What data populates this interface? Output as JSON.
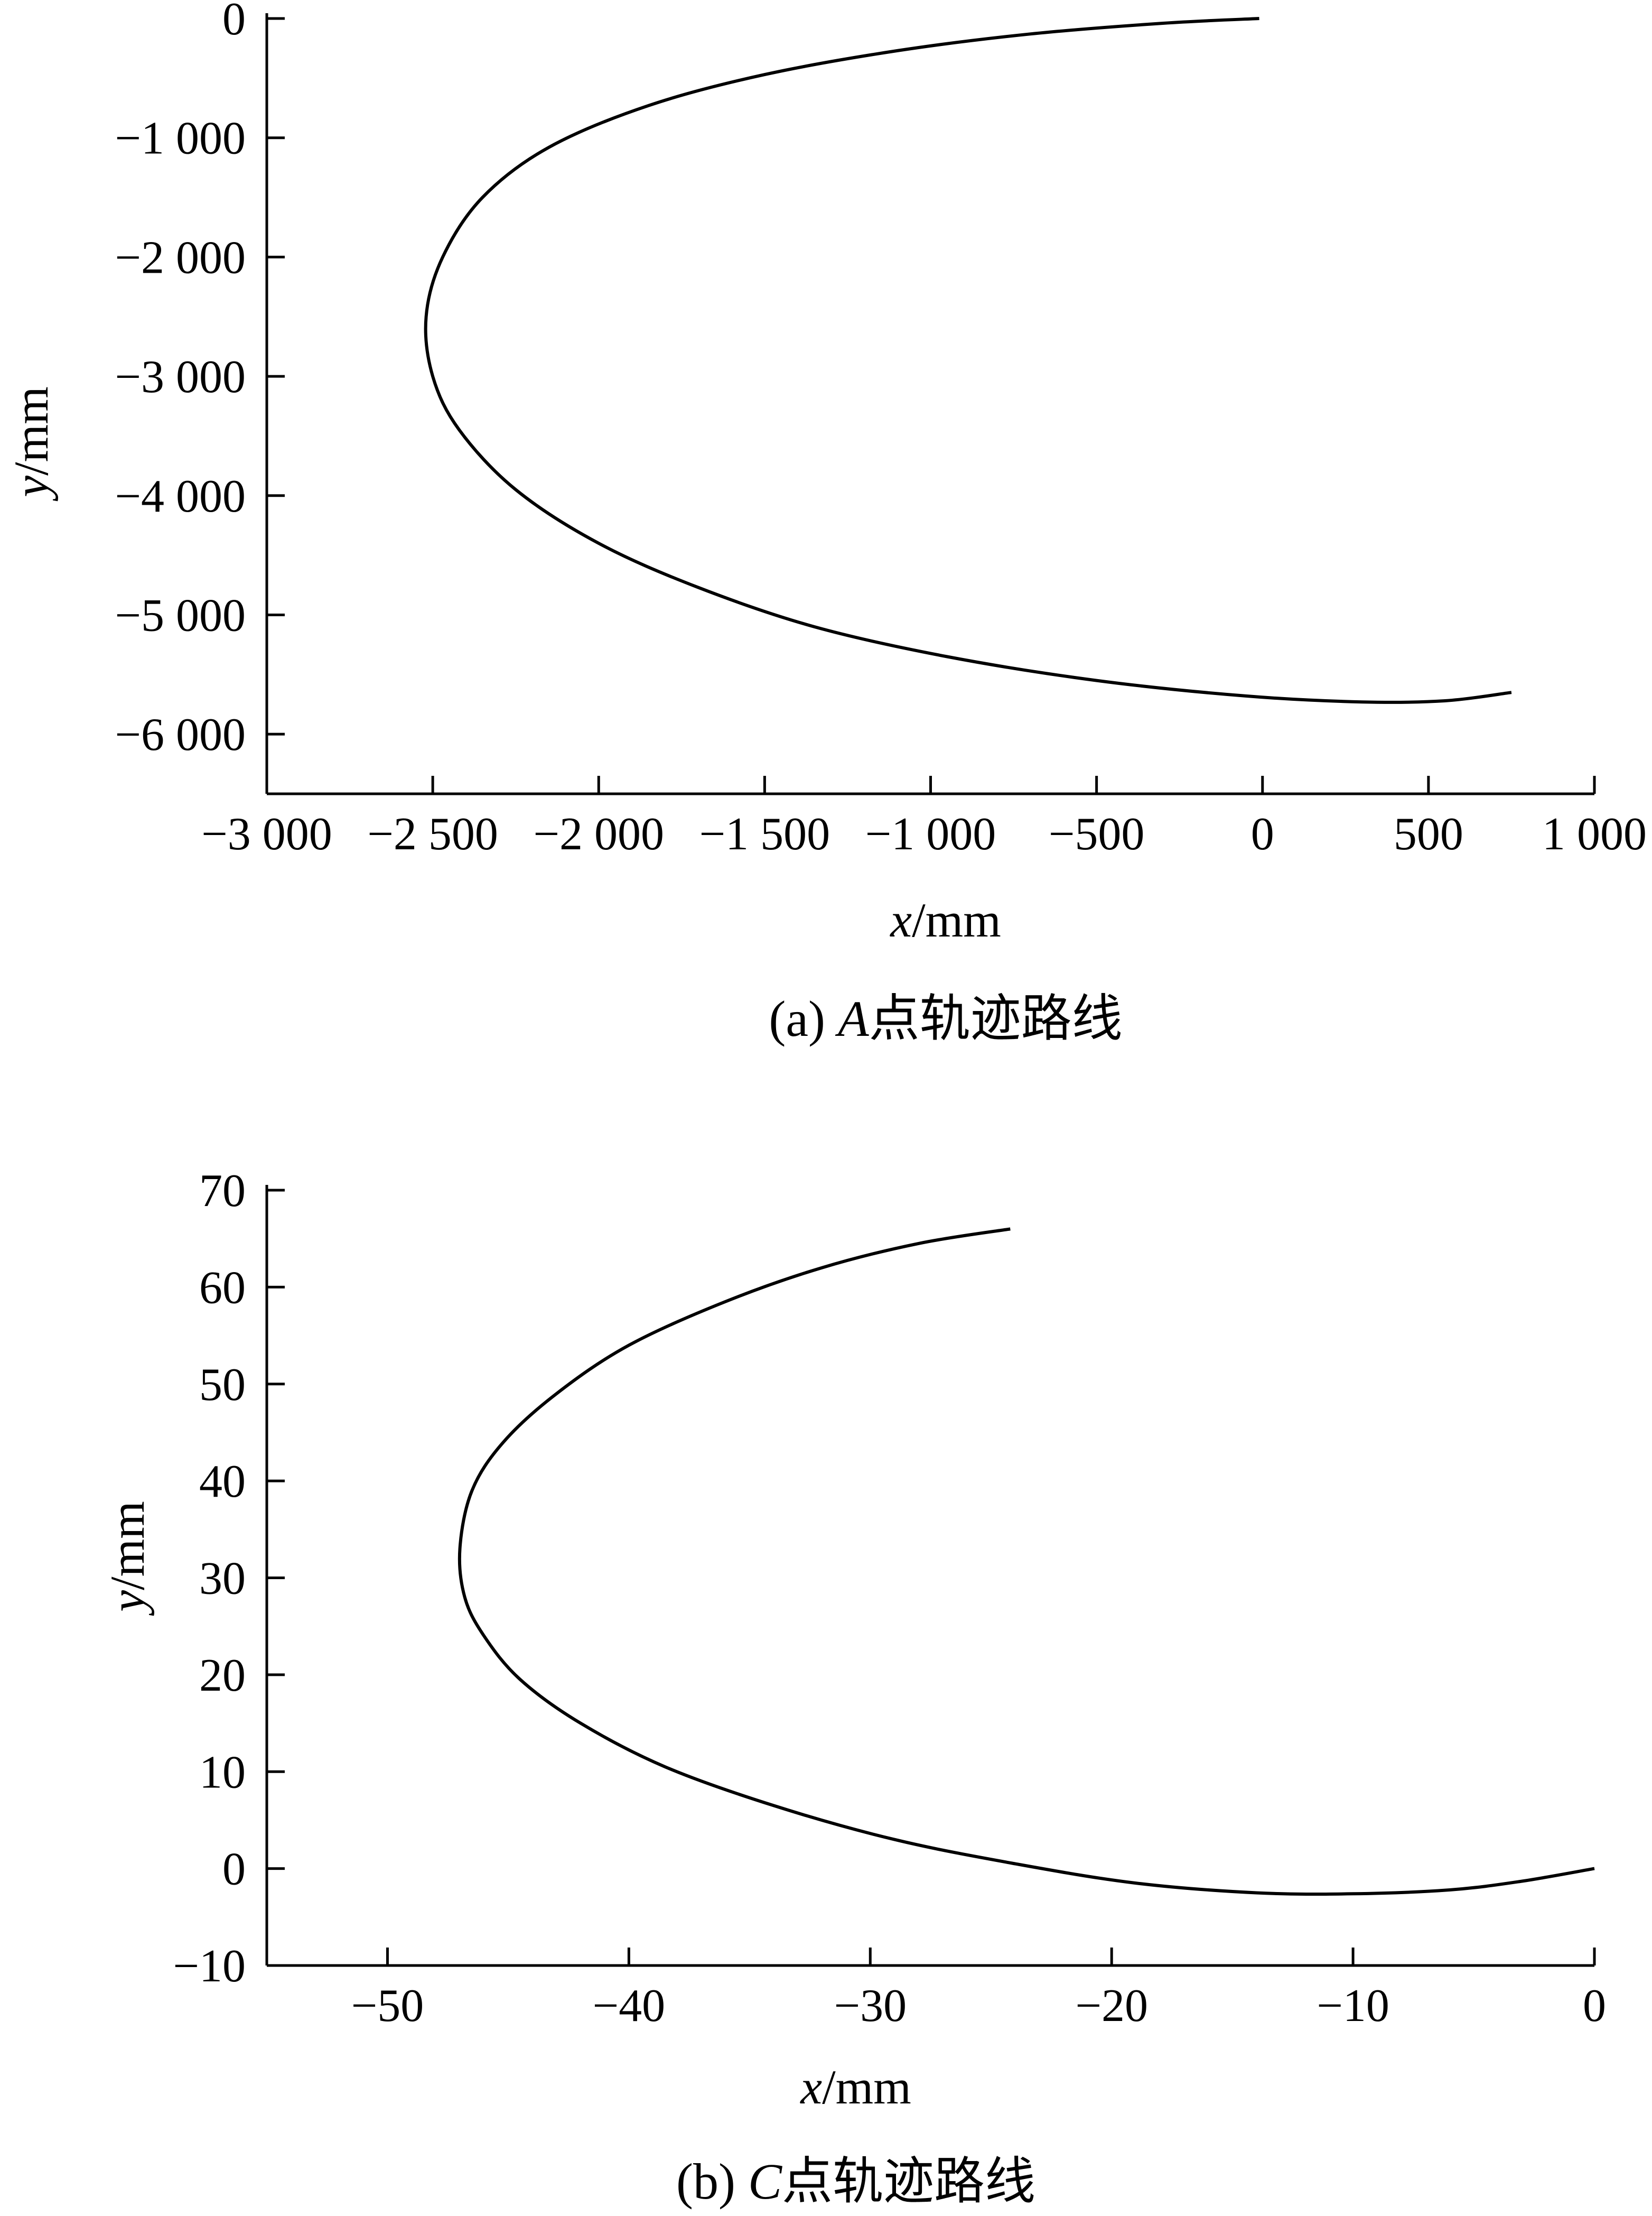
{
  "chart_data": [
    {
      "type": "line",
      "xlabel_var": "x",
      "xlabel_unit": "/mm",
      "ylabel_var": "y",
      "ylabel_unit": "/mm",
      "caption_prefix": "(a) ",
      "caption_var": "A",
      "caption_text": "点轨迹路线",
      "xlim": [
        -3000,
        1000
      ],
      "ylim": [
        -6500,
        0
      ],
      "grid": false,
      "xticks": [
        -3000,
        -2500,
        -2000,
        -1500,
        -1000,
        -500,
        0,
        500,
        1000
      ],
      "xtick_labels": [
        "−3 000",
        "−2 500",
        "−2 000",
        "−1 500",
        "−1 000",
        "−500",
        "0",
        "500",
        "1 000"
      ],
      "yticks": [
        0,
        -1000,
        -2000,
        -3000,
        -4000,
        -5000,
        -6000
      ],
      "ytick_labels": [
        "0",
        "−1 000",
        "−2 000",
        "−3 000",
        "−4 000",
        "−5 000",
        "−6 000"
      ],
      "series": [
        {
          "x": [
            -10,
            -300,
            -700,
            -1100,
            -1500,
            -1850,
            -2150,
            -2350,
            -2470,
            -2520,
            -2500,
            -2420,
            -2250,
            -2000,
            -1700,
            -1350,
            -950,
            -500,
            -50,
            300,
            550,
            750
          ],
          "y": [
            0,
            -40,
            -130,
            -270,
            -470,
            -730,
            -1080,
            -1500,
            -2000,
            -2500,
            -3000,
            -3450,
            -3950,
            -4400,
            -4770,
            -5100,
            -5350,
            -5550,
            -5680,
            -5730,
            -5720,
            -5650
          ]
        }
      ]
    },
    {
      "type": "line",
      "xlabel_var": "x",
      "xlabel_unit": "/mm",
      "ylabel_var": "y",
      "ylabel_unit": "/mm",
      "caption_prefix": "(b) ",
      "caption_var": "C",
      "caption_text": "点轨迹路线",
      "xlim": [
        -55,
        0
      ],
      "ylim": [
        -10,
        70
      ],
      "grid": false,
      "xticks": [
        -50,
        -40,
        -30,
        -20,
        -10,
        0
      ],
      "xtick_labels": [
        "−50",
        "−40",
        "−30",
        "−20",
        "−10",
        "0"
      ],
      "yticks": [
        -10,
        0,
        10,
        20,
        30,
        40,
        50,
        60,
        70
      ],
      "ytick_labels": [
        "−10",
        "0",
        "10",
        "20",
        "30",
        "40",
        "50",
        "60",
        "70"
      ],
      "series": [
        {
          "x": [
            -24.2,
            -28,
            -32,
            -36,
            -40,
            -43,
            -45.2,
            -46.5,
            -47,
            -46.8,
            -46,
            -44.5,
            -42,
            -38.5,
            -34,
            -29,
            -24,
            -19,
            -14,
            -10,
            -6,
            -3,
            0
          ],
          "y": [
            66,
            64.5,
            62,
            58.5,
            54,
            49,
            44,
            39,
            33,
            28,
            24,
            19.5,
            15,
            10.5,
            6.5,
            3,
            0.5,
            -1.5,
            -2.5,
            -2.6,
            -2.2,
            -1.3,
            0
          ]
        }
      ]
    }
  ]
}
